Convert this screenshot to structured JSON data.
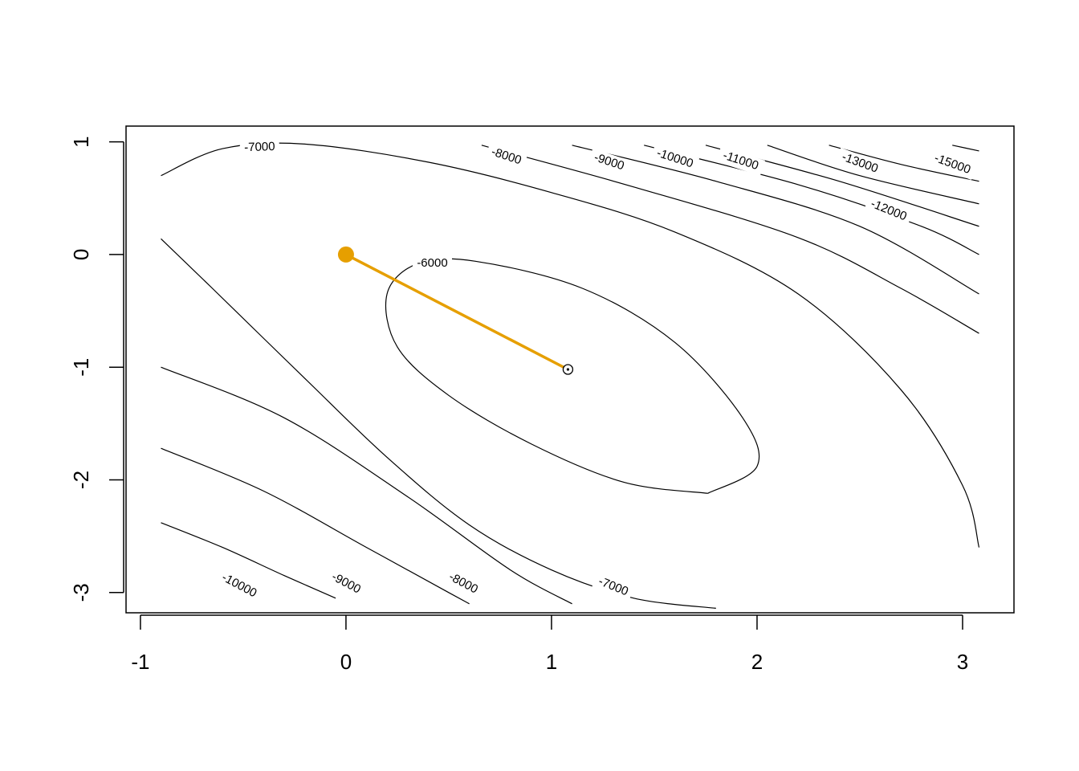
{
  "chart_data": {
    "type": "contour",
    "title": "",
    "xlabel": "",
    "ylabel": "",
    "xlim": [
      -1.07,
      3.25
    ],
    "ylim": [
      -3.18,
      1.14
    ],
    "x_ticks": [
      -1,
      0,
      1,
      2,
      3
    ],
    "y_ticks": [
      1,
      0,
      -1,
      -2,
      -3
    ],
    "x_tick_labels": [
      "-1",
      "0",
      "1",
      "2",
      "3"
    ],
    "y_tick_labels": [
      "1",
      "0",
      "-1",
      "-2",
      "-3"
    ],
    "grid": false,
    "contour_levels": [
      -6000,
      -7000,
      -8000,
      -9000,
      -10000,
      -11000,
      -12000,
      -13000,
      -15000
    ],
    "contours": [
      {
        "level": "-6000",
        "points": [
          [
            1.76,
            -2.12
          ],
          [
            1.35,
            -2.02
          ],
          [
            0.9,
            -1.68
          ],
          [
            0.5,
            -1.25
          ],
          [
            0.25,
            -0.82
          ],
          [
            0.2,
            -0.35
          ],
          [
            0.35,
            -0.08
          ],
          [
            0.63,
            -0.06
          ],
          [
            1.15,
            -0.3
          ],
          [
            1.6,
            -0.78
          ],
          [
            1.93,
            -1.45
          ],
          [
            2.0,
            -1.88
          ],
          [
            1.76,
            -2.12
          ]
        ]
      },
      {
        "level": "-7000",
        "points": [
          [
            -0.9,
            0.7
          ],
          [
            -0.6,
            0.94
          ],
          [
            -0.2,
            0.98
          ],
          [
            0.4,
            0.82
          ],
          [
            1.0,
            0.55
          ],
          [
            1.6,
            0.2
          ],
          [
            2.2,
            -0.35
          ],
          [
            2.7,
            -1.2
          ],
          [
            3.0,
            -2.05
          ],
          [
            3.08,
            -2.6
          ]
        ]
      },
      {
        "level": "-7000",
        "points": [
          [
            -0.9,
            0.14
          ],
          [
            -0.65,
            -0.3
          ],
          [
            -0.2,
            -1.1
          ],
          [
            0.2,
            -1.8
          ],
          [
            0.6,
            -2.4
          ],
          [
            1.0,
            -2.8
          ],
          [
            1.4,
            -3.05
          ],
          [
            1.8,
            -3.14
          ]
        ]
      },
      {
        "level": "-8000",
        "points": [
          [
            0.66,
            0.97
          ],
          [
            1.4,
            0.6
          ],
          [
            2.2,
            0.15
          ],
          [
            2.7,
            -0.3
          ],
          [
            3.08,
            -0.7
          ]
        ]
      },
      {
        "level": "-8000",
        "points": [
          [
            -0.9,
            -1.0
          ],
          [
            -0.3,
            -1.45
          ],
          [
            0.3,
            -2.15
          ],
          [
            0.8,
            -2.8
          ],
          [
            1.1,
            -3.1
          ]
        ]
      },
      {
        "level": "-9000",
        "points": [
          [
            1.1,
            0.97
          ],
          [
            1.8,
            0.65
          ],
          [
            2.5,
            0.25
          ],
          [
            3.08,
            -0.35
          ]
        ]
      },
      {
        "level": "-9000",
        "points": [
          [
            -0.9,
            -1.72
          ],
          [
            -0.4,
            -2.1
          ],
          [
            0.1,
            -2.6
          ],
          [
            0.5,
            -3.0
          ],
          [
            0.6,
            -3.1
          ]
        ]
      },
      {
        "level": "-10000",
        "points": [
          [
            1.45,
            0.97
          ],
          [
            2.2,
            0.62
          ],
          [
            2.8,
            0.25
          ],
          [
            3.08,
            0.0
          ]
        ]
      },
      {
        "level": "-10000",
        "points": [
          [
            -0.9,
            -2.38
          ],
          [
            -0.6,
            -2.6
          ],
          [
            -0.3,
            -2.85
          ],
          [
            -0.05,
            -3.05
          ]
        ]
      },
      {
        "level": "-11000",
        "points": [
          [
            1.75,
            0.97
          ],
          [
            2.4,
            0.65
          ],
          [
            3.08,
            0.25
          ]
        ]
      },
      {
        "level": "-12000",
        "points": [
          [
            2.05,
            0.97
          ],
          [
            2.5,
            0.7
          ],
          [
            3.08,
            0.45
          ]
        ]
      },
      {
        "level": "-13000",
        "points": [
          [
            2.35,
            0.97
          ],
          [
            2.7,
            0.8
          ],
          [
            3.08,
            0.65
          ]
        ]
      },
      {
        "level": "-15000",
        "points": [
          [
            2.95,
            0.97
          ],
          [
            3.08,
            0.92
          ]
        ]
      }
    ],
    "contour_labels": [
      {
        "text": "-7000",
        "x": -0.42,
        "y": 0.95,
        "angle": -2
      },
      {
        "text": "-8000",
        "x": 0.78,
        "y": 0.87,
        "angle": 18
      },
      {
        "text": "-9000",
        "x": 1.28,
        "y": 0.82,
        "angle": 18
      },
      {
        "text": "-10000",
        "x": 1.6,
        "y": 0.85,
        "angle": 18
      },
      {
        "text": "-11000",
        "x": 1.92,
        "y": 0.83,
        "angle": 18
      },
      {
        "text": "-13000",
        "x": 2.5,
        "y": 0.81,
        "angle": 20
      },
      {
        "text": "-15000",
        "x": 2.95,
        "y": 0.8,
        "angle": 20
      },
      {
        "text": "-12000",
        "x": 2.64,
        "y": 0.39,
        "angle": 22
      },
      {
        "text": "-6000",
        "x": 0.42,
        "y": -0.08,
        "angle": 0
      },
      {
        "text": "-10000",
        "x": -0.52,
        "y": -2.94,
        "angle": 28
      },
      {
        "text": "-9000",
        "x": 0.0,
        "y": -2.92,
        "angle": 28
      },
      {
        "text": "-8000",
        "x": 0.57,
        "y": -2.92,
        "angle": 28
      },
      {
        "text": "-7000",
        "x": 1.3,
        "y": -2.95,
        "angle": 22
      }
    ],
    "path_series": {
      "color": "#E69F00",
      "points": [
        [
          0.0,
          0.0
        ],
        [
          1.08,
          -1.02
        ]
      ],
      "start_point": [
        0.0,
        0.0
      ],
      "optimum_point": [
        1.08,
        -1.02
      ]
    }
  }
}
